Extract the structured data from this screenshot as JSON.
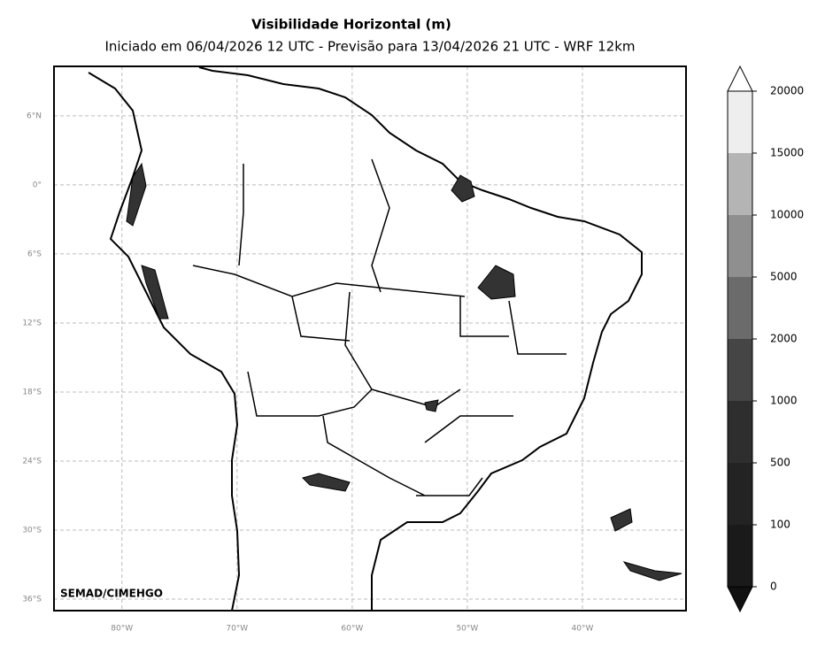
{
  "title": "Visibilidade Horizontal (m)",
  "subtitle": "Iniciado em 06/04/2026 12 UTC - Previsão para 13/04/2026 21 UTC - WRF 12km",
  "credit": "SEMAD/CIMEHGO",
  "map": {
    "xlim": [
      -85.9,
      -31
    ],
    "ylim": [
      -37,
      10.3
    ],
    "lat_grid": [
      {
        "value": 6,
        "label": "6°N"
      },
      {
        "value": 0,
        "label": "0°"
      },
      {
        "value": -6,
        "label": "6°S"
      },
      {
        "value": -12,
        "label": "12°S"
      },
      {
        "value": -18,
        "label": "18°S"
      },
      {
        "value": -24,
        "label": "24°S"
      },
      {
        "value": -30,
        "label": "30°S"
      },
      {
        "value": -36,
        "label": "36°S"
      }
    ],
    "lon_grid": [
      {
        "value": -80,
        "label": "80°W"
      },
      {
        "value": -70,
        "label": "70°W"
      },
      {
        "value": -60,
        "label": "60°W"
      },
      {
        "value": -50,
        "label": "50°W"
      },
      {
        "value": -40,
        "label": "40°W"
      }
    ]
  },
  "colorbar": {
    "ticks": [
      0,
      100,
      500,
      1000,
      2000,
      5000,
      10000,
      15000,
      20000
    ],
    "colors": [
      "#1a1a1a",
      "#232323",
      "#2e2e2e",
      "#454545",
      "#6b6b6b",
      "#8f8f8f",
      "#b4b4b4",
      "#eeeeee"
    ],
    "under_color": "#111111",
    "over_color": "#ffffff"
  }
}
